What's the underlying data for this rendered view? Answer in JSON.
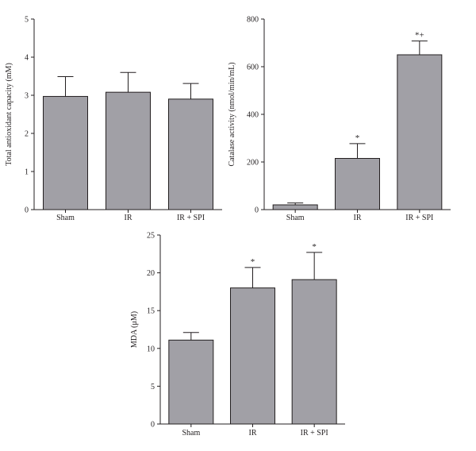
{
  "colors": {
    "bar_fill": "#a1a0a6",
    "bar_stroke": "#231f20",
    "axis": "#231f20"
  },
  "chart_data": [
    {
      "id": "tac",
      "type": "bar",
      "title": "",
      "xlabel": "",
      "ylabel": "Total antioxidant capacity (mM)",
      "categories": [
        "Sham",
        "IR",
        "IR + SPI"
      ],
      "values": [
        2.97,
        3.08,
        2.9
      ],
      "errors": [
        0.52,
        0.52,
        0.41
      ],
      "significance": [
        "",
        "",
        ""
      ],
      "ylim": [
        0,
        5
      ],
      "yticks": [
        0,
        1,
        2,
        3,
        4,
        5
      ],
      "grid": false
    },
    {
      "id": "catalase",
      "type": "bar",
      "title": "",
      "xlabel": "",
      "ylabel": "Catalase activity (nmol/min/mL)",
      "categories": [
        "Sham",
        "IR",
        "IR + SPI"
      ],
      "values": [
        20,
        215,
        650
      ],
      "errors": [
        8,
        62,
        58
      ],
      "significance": [
        "",
        "*",
        "*+"
      ],
      "ylim": [
        0,
        800
      ],
      "yticks": [
        0,
        200,
        400,
        600,
        800
      ],
      "grid": false
    },
    {
      "id": "mda",
      "type": "bar",
      "title": "",
      "xlabel": "",
      "ylabel": "MDA (μM)",
      "categories": [
        "Sham",
        "IR",
        "IR + SPI"
      ],
      "values": [
        11.1,
        18.0,
        19.1
      ],
      "errors": [
        1.0,
        2.7,
        3.6
      ],
      "significance": [
        "",
        "*",
        "*"
      ],
      "ylim": [
        0,
        25
      ],
      "yticks": [
        0,
        5,
        10,
        15,
        20,
        25
      ],
      "grid": false
    }
  ]
}
